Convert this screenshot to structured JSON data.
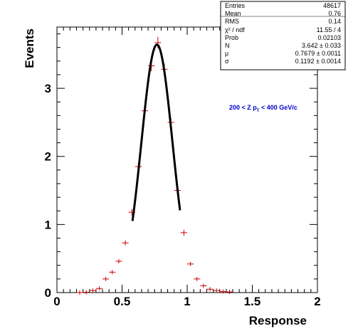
{
  "chart_data": {
    "type": "scatter",
    "title": "",
    "xlabel": "Response",
    "ylabel": "Events",
    "xlim": [
      0,
      2
    ],
    "ylim": [
      0,
      3.9
    ],
    "grid": false,
    "xticks": [
      {
        "value": 0,
        "label": "0"
      },
      {
        "value": 0.5,
        "label": "0.5"
      },
      {
        "value": 1,
        "label": "1"
      },
      {
        "value": 1.5,
        "label": "1.5"
      },
      {
        "value": 2,
        "label": "2"
      }
    ],
    "yticks": [
      {
        "value": 0,
        "label": "0"
      },
      {
        "value": 1,
        "label": "1"
      },
      {
        "value": 2,
        "label": "2"
      },
      {
        "value": 3,
        "label": "3"
      }
    ],
    "annotation": {
      "prefix": "200 < Z p",
      "subscript": "T",
      "suffix": " < 400 GeV/c"
    },
    "bin_half_width": 0.025,
    "series": [
      {
        "type": "points",
        "color": "#cc0000",
        "x": [
          0.175,
          0.225,
          0.275,
          0.325,
          0.375,
          0.425,
          0.475,
          0.525,
          0.575,
          0.625,
          0.675,
          0.725,
          0.775,
          0.825,
          0.875,
          0.925,
          0.975,
          1.025,
          1.075,
          1.125,
          1.175,
          1.225,
          1.275,
          1.325
        ],
        "y": [
          0.0,
          0.005,
          0.03,
          0.06,
          0.2,
          0.3,
          0.46,
          0.73,
          1.18,
          1.85,
          2.67,
          3.33,
          3.67,
          3.28,
          2.5,
          1.5,
          0.88,
          0.42,
          0.2,
          0.1,
          0.05,
          0.03,
          0.015,
          0.01
        ],
        "yerr": [
          0.002,
          0.004,
          0.008,
          0.011,
          0.02,
          0.025,
          0.03,
          0.038,
          0.048,
          0.06,
          0.072,
          0.08,
          0.085,
          0.08,
          0.07,
          0.055,
          0.043,
          0.03,
          0.02,
          0.014,
          0.01,
          0.008,
          0.006,
          0.005
        ]
      },
      {
        "type": "gaussian-fit",
        "color": "#000000",
        "N": 3.642,
        "mu": 0.7679,
        "sigma": 0.1192,
        "x_range": [
          0.58,
          0.945
        ]
      }
    ]
  },
  "stats": {
    "rows": [
      {
        "label": "Entries",
        "value": "48617"
      },
      {
        "label": "Mean",
        "value": "0.76"
      },
      {
        "label": "RMS",
        "value": "0.14"
      },
      {
        "label": "χ² / ndf",
        "value": "11.55 / 4"
      },
      {
        "label": "Prob",
        "value": "0.02103"
      },
      {
        "label": "N",
        "value": "3.642 ± 0.033"
      },
      {
        "label": "μ",
        "value": "0.7679 ± 0.0011"
      },
      {
        "label": "σ",
        "value": "0.1192 ± 0.0014"
      }
    ]
  }
}
